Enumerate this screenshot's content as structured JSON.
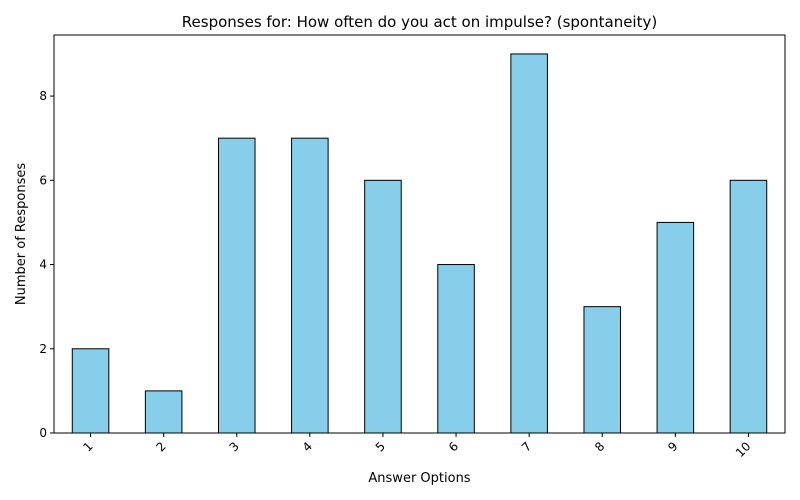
{
  "chart_data": {
    "type": "bar",
    "title": "Responses for: How often do you act on impulse? (spontaneity)",
    "xlabel": "Answer Options",
    "ylabel": "Number of Responses",
    "categories": [
      "1",
      "2",
      "3",
      "4",
      "5",
      "6",
      "7",
      "8",
      "9",
      "10"
    ],
    "values": [
      2,
      1,
      7,
      7,
      6,
      4,
      9,
      3,
      5,
      6
    ],
    "ylim": [
      0,
      9.45
    ],
    "yticks": [
      0,
      2,
      4,
      6,
      8
    ],
    "grid": false,
    "legend": "none",
    "bar_color": "#87CEEB",
    "bar_edge_color": "#000000"
  }
}
